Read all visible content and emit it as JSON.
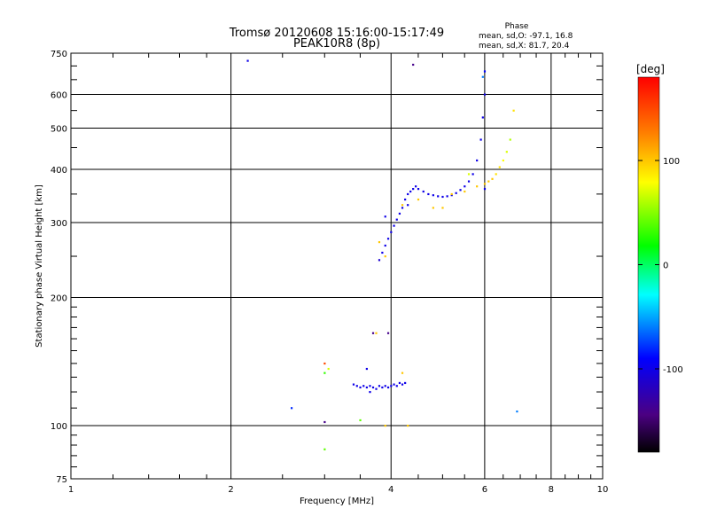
{
  "header": {
    "title_line1": "Tromsø 20120608 15:16:00-15:17:49",
    "title_line2": "PEAK10R8 (8p)",
    "stats_heading": "Phase",
    "stats_o": "mean, sd,O: -97.1, 16.8",
    "stats_x": "mean, sd,X:  81.7, 20.4"
  },
  "colorbar": {
    "unit_label": "[deg]",
    "tick_labels": [
      "100",
      "0",
      "-100"
    ],
    "tick_values": [
      100,
      0,
      -100
    ],
    "range": [
      -180,
      180
    ]
  },
  "chart_data": {
    "type": "scatter",
    "title": "Tromsø 20120608 15:16:00-15:17:49",
    "subtitle": "PEAK10R8 (8p)",
    "xlabel": "Frequency [MHz]",
    "ylabel": "Stationary phase Virtual Height [km]",
    "x_scale": "log",
    "y_scale": "log",
    "xlim": [
      1,
      10
    ],
    "ylim": [
      75,
      750
    ],
    "grid": true,
    "x_ticks": [
      1,
      2,
      4,
      6,
      8,
      10
    ],
    "x_tick_labels": [
      "1",
      "2",
      "4",
      "6",
      "8",
      "10"
    ],
    "y_ticks": [
      75,
      100,
      200,
      300,
      400,
      500,
      600,
      750
    ],
    "y_tick_labels": [
      "75",
      "100",
      "200",
      "300",
      "400",
      "500",
      "600",
      "750"
    ],
    "color_axis": {
      "label": "[deg]",
      "range": [
        -180,
        180
      ]
    },
    "series": [
      {
        "mode": "O",
        "stats": {
          "mean": -97.1,
          "sd": 16.8
        },
        "points": [
          {
            "x": 2.15,
            "y": 720,
            "c": -100
          },
          {
            "x": 4.4,
            "y": 705,
            "c": -140
          },
          {
            "x": 3.4,
            "y": 125,
            "c": -100
          },
          {
            "x": 3.45,
            "y": 124,
            "c": -100
          },
          {
            "x": 3.5,
            "y": 123,
            "c": -100
          },
          {
            "x": 3.55,
            "y": 124,
            "c": -100
          },
          {
            "x": 3.6,
            "y": 123,
            "c": -100
          },
          {
            "x": 3.65,
            "y": 124,
            "c": -100
          },
          {
            "x": 3.7,
            "y": 123,
            "c": -100
          },
          {
            "x": 3.75,
            "y": 122,
            "c": -100
          },
          {
            "x": 3.8,
            "y": 124,
            "c": -100
          },
          {
            "x": 3.85,
            "y": 123,
            "c": -100
          },
          {
            "x": 3.9,
            "y": 124,
            "c": -100
          },
          {
            "x": 3.95,
            "y": 123,
            "c": -100
          },
          {
            "x": 4.0,
            "y": 124,
            "c": -100
          },
          {
            "x": 4.05,
            "y": 125,
            "c": -100
          },
          {
            "x": 4.1,
            "y": 124,
            "c": -100
          },
          {
            "x": 4.15,
            "y": 126,
            "c": -100
          },
          {
            "x": 4.2,
            "y": 125,
            "c": -100
          },
          {
            "x": 4.25,
            "y": 126,
            "c": -100
          },
          {
            "x": 3.65,
            "y": 120,
            "c": -100
          },
          {
            "x": 3.6,
            "y": 136,
            "c": -100
          },
          {
            "x": 3.8,
            "y": 245,
            "c": -110
          },
          {
            "x": 3.85,
            "y": 255,
            "c": -100
          },
          {
            "x": 3.9,
            "y": 265,
            "c": -100
          },
          {
            "x": 3.95,
            "y": 275,
            "c": -100
          },
          {
            "x": 4.0,
            "y": 285,
            "c": -100
          },
          {
            "x": 4.05,
            "y": 295,
            "c": -100
          },
          {
            "x": 4.1,
            "y": 305,
            "c": -100
          },
          {
            "x": 4.15,
            "y": 315,
            "c": -100
          },
          {
            "x": 4.2,
            "y": 325,
            "c": -100
          },
          {
            "x": 4.25,
            "y": 340,
            "c": -100
          },
          {
            "x": 4.3,
            "y": 350,
            "c": -100
          },
          {
            "x": 4.35,
            "y": 355,
            "c": -100
          },
          {
            "x": 4.4,
            "y": 360,
            "c": -100
          },
          {
            "x": 4.45,
            "y": 365,
            "c": -100
          },
          {
            "x": 4.5,
            "y": 360,
            "c": -100
          },
          {
            "x": 4.6,
            "y": 355,
            "c": -100
          },
          {
            "x": 4.7,
            "y": 350,
            "c": -100
          },
          {
            "x": 4.8,
            "y": 348,
            "c": -100
          },
          {
            "x": 4.9,
            "y": 346,
            "c": -100
          },
          {
            "x": 5.0,
            "y": 345,
            "c": -100
          },
          {
            "x": 5.1,
            "y": 346,
            "c": -100
          },
          {
            "x": 5.2,
            "y": 348,
            "c": -100
          },
          {
            "x": 5.3,
            "y": 352,
            "c": -100
          },
          {
            "x": 5.4,
            "y": 358,
            "c": -100
          },
          {
            "x": 5.5,
            "y": 365,
            "c": -100
          },
          {
            "x": 5.6,
            "y": 375,
            "c": -100
          },
          {
            "x": 5.7,
            "y": 390,
            "c": -100
          },
          {
            "x": 5.8,
            "y": 420,
            "c": -100
          },
          {
            "x": 5.9,
            "y": 470,
            "c": -100
          },
          {
            "x": 5.95,
            "y": 530,
            "c": -100
          },
          {
            "x": 6.0,
            "y": 600,
            "c": -100
          },
          {
            "x": 6.0,
            "y": 680,
            "c": -90
          },
          {
            "x": 5.95,
            "y": 660,
            "c": -60
          },
          {
            "x": 3.9,
            "y": 310,
            "c": -100
          },
          {
            "x": 4.3,
            "y": 330,
            "c": -100
          },
          {
            "x": 3.7,
            "y": 165,
            "c": -140
          },
          {
            "x": 3.0,
            "y": 102,
            "c": -140
          },
          {
            "x": 2.6,
            "y": 110,
            "c": -80
          },
          {
            "x": 6.0,
            "y": 360,
            "c": -100
          },
          {
            "x": 3.95,
            "y": 165,
            "c": -140
          }
        ]
      },
      {
        "mode": "X",
        "stats": {
          "mean": 81.7,
          "sd": 20.4
        },
        "points": [
          {
            "x": 3.75,
            "y": 165,
            "c": 100
          },
          {
            "x": 3.9,
            "y": 100,
            "c": 100
          },
          {
            "x": 4.3,
            "y": 100,
            "c": 100
          },
          {
            "x": 3.0,
            "y": 140,
            "c": 150
          },
          {
            "x": 3.05,
            "y": 136,
            "c": 70
          },
          {
            "x": 3.0,
            "y": 133,
            "c": 30
          },
          {
            "x": 3.0,
            "y": 88,
            "c": 40
          },
          {
            "x": 3.5,
            "y": 103,
            "c": 40
          },
          {
            "x": 3.8,
            "y": 270,
            "c": 100
          },
          {
            "x": 3.9,
            "y": 250,
            "c": 100
          },
          {
            "x": 4.2,
            "y": 330,
            "c": 100
          },
          {
            "x": 4.5,
            "y": 340,
            "c": 100
          },
          {
            "x": 4.8,
            "y": 325,
            "c": 100
          },
          {
            "x": 5.0,
            "y": 325,
            "c": 100
          },
          {
            "x": 5.2,
            "y": 350,
            "c": 100
          },
          {
            "x": 5.5,
            "y": 355,
            "c": 100
          },
          {
            "x": 5.8,
            "y": 365,
            "c": 100
          },
          {
            "x": 6.0,
            "y": 370,
            "c": 100
          },
          {
            "x": 6.1,
            "y": 375,
            "c": 100
          },
          {
            "x": 6.2,
            "y": 380,
            "c": 100
          },
          {
            "x": 6.3,
            "y": 390,
            "c": 90
          },
          {
            "x": 6.4,
            "y": 405,
            "c": 90
          },
          {
            "x": 6.5,
            "y": 420,
            "c": 80
          },
          {
            "x": 6.6,
            "y": 440,
            "c": 70
          },
          {
            "x": 6.7,
            "y": 470,
            "c": 60
          },
          {
            "x": 6.8,
            "y": 550,
            "c": 90
          },
          {
            "x": 5.6,
            "y": 390,
            "c": 70
          },
          {
            "x": 4.2,
            "y": 133,
            "c": 100
          },
          {
            "x": 6.9,
            "y": 108,
            "c": -60
          }
        ]
      }
    ]
  }
}
